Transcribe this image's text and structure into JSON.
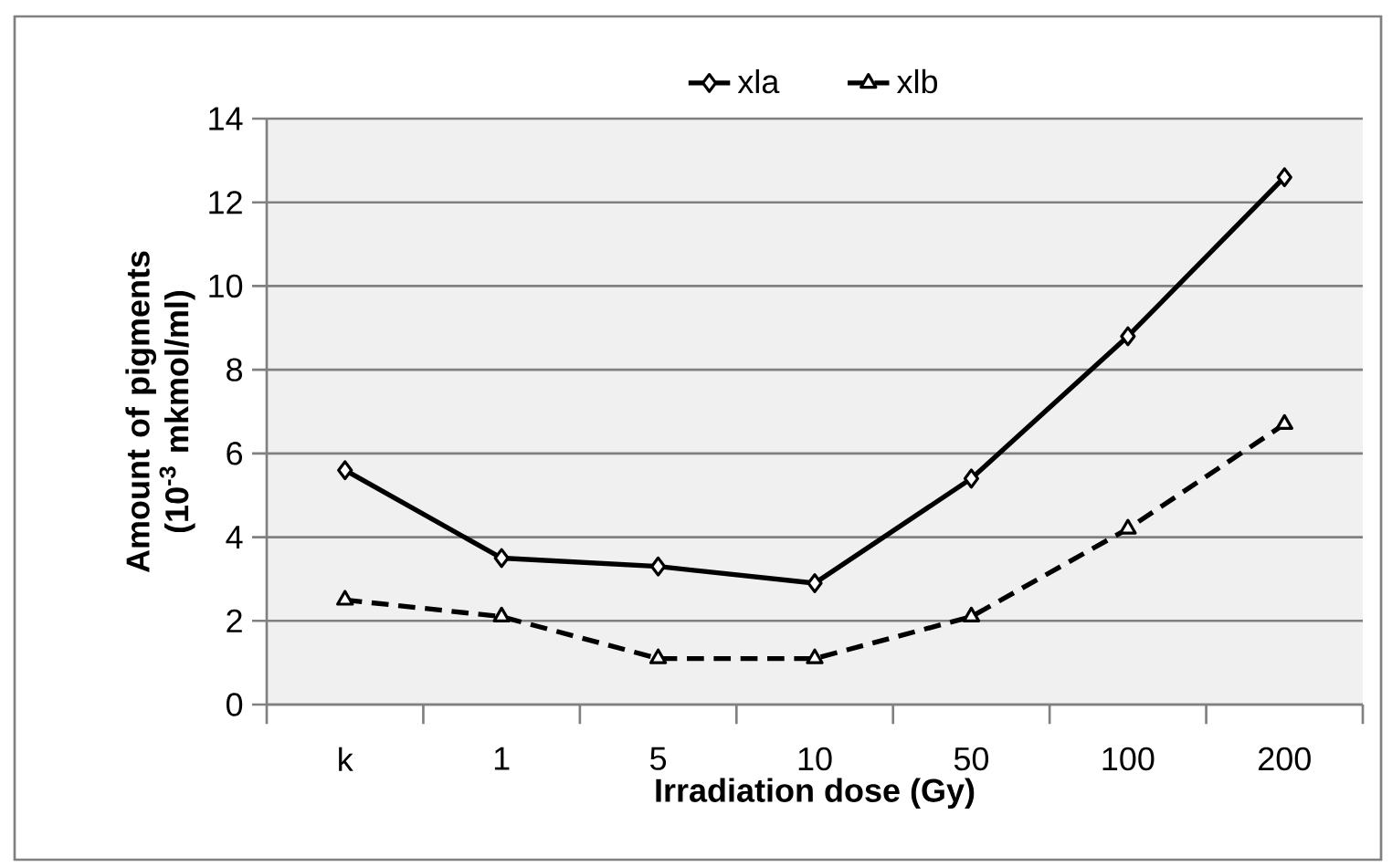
{
  "chart_data": {
    "type": "line",
    "xlabel": "Irradiation dose (Gy)",
    "ylabel": "Amount of pigments (10$^{-3}$ mkmol/ml)",
    "categories": [
      "k",
      "1",
      "5",
      "10",
      "50",
      "100",
      "200"
    ],
    "series": [
      {
        "name": "xla",
        "color": "#000000",
        "marker": "diamond",
        "line_style": "solid",
        "values": [
          5.6,
          3.5,
          3.3,
          2.9,
          5.4,
          8.8,
          12.6
        ]
      },
      {
        "name": "xlb",
        "color": "#000000",
        "marker": "triangle",
        "line_style": "dashed",
        "values": [
          2.5,
          2.1,
          1.1,
          1.1,
          2.1,
          4.2,
          6.7
        ]
      }
    ],
    "ylim": [
      0,
      14
    ],
    "yticks": [
      0,
      2,
      4,
      6,
      8,
      10,
      12,
      14
    ],
    "grid": "y",
    "legend": "top"
  }
}
